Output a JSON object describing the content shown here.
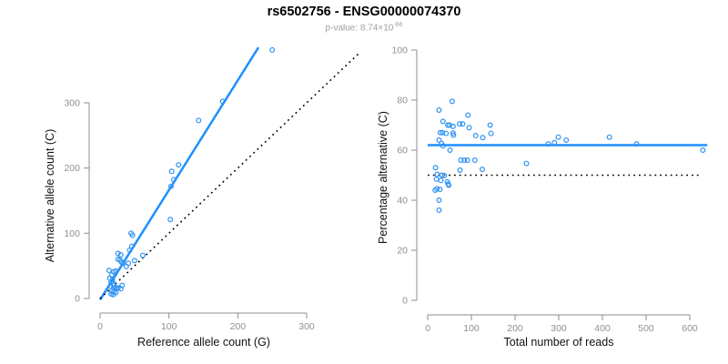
{
  "title": "rs6502756 - ENSG00000074370",
  "subtitle": {
    "text": "p-value: 8.74×10",
    "exponent": "-66"
  },
  "colors": {
    "accent_blue": "#1E90FF",
    "point_blue": "#2E93F2",
    "axis_gray": "#8c8c8c",
    "tick_label_gray": "#909090",
    "axis_title_black": "#111111",
    "dotted_black": "#000000"
  },
  "chart_data": [
    {
      "type": "scatter",
      "panel": "left",
      "xlabel": "Reference allele count (G)",
      "ylabel": "Alternative allele count (C)",
      "xticks": [
        0,
        100,
        200,
        300
      ],
      "yticks": [
        0,
        100,
        200,
        300
      ],
      "xlim": [
        0,
        300
      ],
      "ylim": [
        0,
        300
      ],
      "grid": false,
      "lines": [
        {
          "name": "fit-line",
          "style": "solid",
          "color": "#1E90FF",
          "from": [
            0,
            -2
          ],
          "to": [
            230,
            385
          ]
        },
        {
          "name": "identity-line",
          "style": "dotted",
          "color": "#000000",
          "from": [
            0,
            0
          ],
          "to": [
            375,
            375
          ]
        }
      ],
      "points": [
        [
          13,
          43
        ],
        [
          17,
          36
        ],
        [
          20,
          41
        ],
        [
          23,
          42
        ],
        [
          14,
          31
        ],
        [
          18,
          29
        ],
        [
          16,
          25
        ],
        [
          19,
          23
        ],
        [
          15,
          19
        ],
        [
          20,
          20
        ],
        [
          22,
          17
        ],
        [
          24,
          16
        ],
        [
          26,
          16
        ],
        [
          30,
          15
        ],
        [
          32,
          20
        ],
        [
          17,
          11
        ],
        [
          20,
          10
        ],
        [
          23,
          9
        ],
        [
          16,
          7
        ],
        [
          19,
          6
        ],
        [
          26,
          69
        ],
        [
          30,
          67
        ],
        [
          29,
          59
        ],
        [
          31,
          56
        ],
        [
          26,
          60
        ],
        [
          33,
          54
        ],
        [
          38,
          49
        ],
        [
          41,
          54
        ],
        [
          45,
          100
        ],
        [
          47,
          97
        ],
        [
          46,
          80
        ],
        [
          43,
          74
        ],
        [
          50,
          58
        ],
        [
          62,
          66
        ],
        [
          102,
          121
        ],
        [
          103,
          172
        ],
        [
          107,
          182
        ],
        [
          104,
          195
        ],
        [
          114,
          205
        ],
        [
          143,
          273
        ],
        [
          178,
          302
        ],
        [
          250,
          381
        ]
      ]
    },
    {
      "type": "scatter",
      "panel": "right",
      "xlabel": "Total number of reads",
      "ylabel": "Percentage alternative (C)",
      "xticks": [
        0,
        100,
        200,
        300,
        400,
        500,
        600
      ],
      "yticks": [
        0,
        20,
        40,
        60,
        80,
        100
      ],
      "xlim": [
        0,
        600
      ],
      "ylim": [
        0,
        100
      ],
      "grid": false,
      "lines": [
        {
          "name": "mean-percentage-line",
          "style": "solid",
          "color": "#1E90FF",
          "from": [
            0,
            62
          ],
          "to": [
            640,
            62
          ]
        },
        {
          "name": "fifty-percent-line",
          "style": "dotted",
          "color": "#000000",
          "from": [
            0,
            50
          ],
          "to": [
            620,
            50
          ]
        }
      ],
      "points": [
        [
          56,
          79.5
        ],
        [
          26,
          76
        ],
        [
          92,
          74
        ],
        [
          35,
          71.5
        ],
        [
          46,
          70
        ],
        [
          50,
          70
        ],
        [
          58,
          69.5
        ],
        [
          73,
          70.5
        ],
        [
          80,
          70.5
        ],
        [
          95,
          69
        ],
        [
          29,
          67
        ],
        [
          34,
          67
        ],
        [
          42,
          66.7
        ],
        [
          58,
          66.8
        ],
        [
          59,
          66
        ],
        [
          110,
          65.8
        ],
        [
          126,
          65
        ],
        [
          143,
          70
        ],
        [
          145,
          66.7
        ],
        [
          26,
          64
        ],
        [
          32,
          62.7
        ],
        [
          35,
          61.7
        ],
        [
          51,
          60
        ],
        [
          76,
          56
        ],
        [
          84,
          56
        ],
        [
          91,
          56
        ],
        [
          108,
          56
        ],
        [
          18,
          53
        ],
        [
          74,
          52
        ],
        [
          125,
          52.3
        ],
        [
          22,
          50.3
        ],
        [
          33,
          50
        ],
        [
          38,
          49.8
        ],
        [
          20,
          48.4
        ],
        [
          30,
          47.9
        ],
        [
          45,
          47.3
        ],
        [
          47,
          46.4
        ],
        [
          48,
          46
        ],
        [
          21,
          44.6
        ],
        [
          17,
          44
        ],
        [
          28,
          44.3
        ],
        [
          26,
          40
        ],
        [
          26,
          36
        ],
        [
          226,
          54.7
        ],
        [
          276,
          62.5
        ],
        [
          290,
          63
        ],
        [
          299,
          65.2
        ],
        [
          317,
          64
        ],
        [
          416,
          65.2
        ],
        [
          478,
          62.5
        ],
        [
          630,
          60
        ]
      ]
    }
  ]
}
